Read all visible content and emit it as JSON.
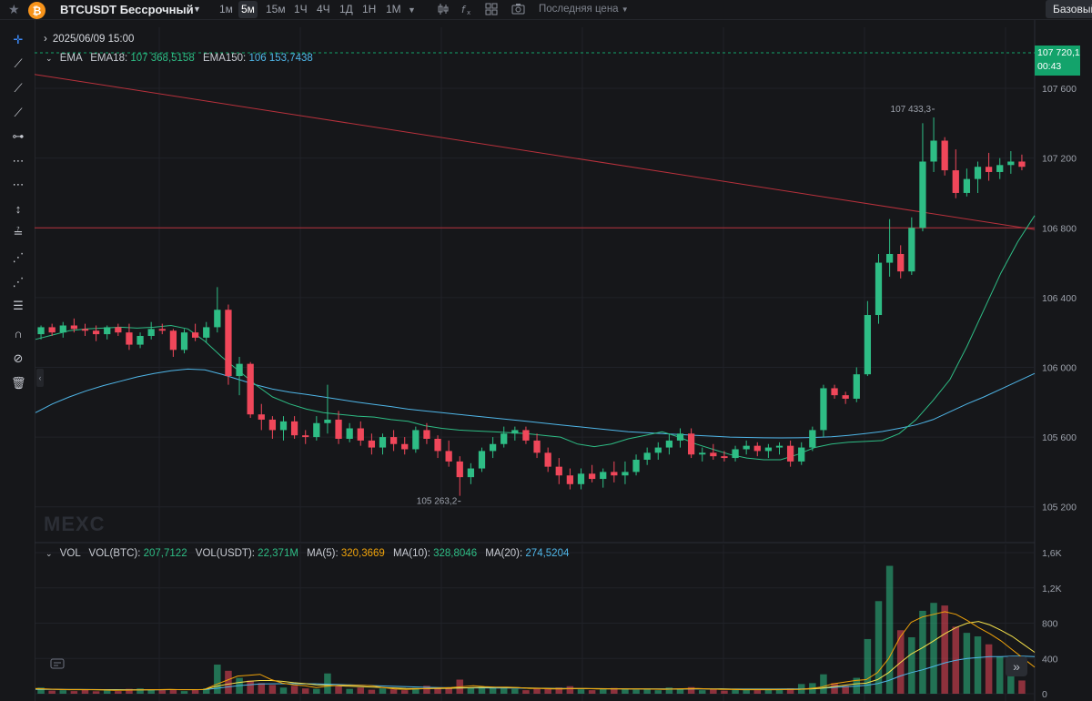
{
  "header": {
    "symbol": "BTCUSDT Бессрочный",
    "timeframes": [
      "1м",
      "5м",
      "15м",
      "1Ч",
      "4Ч",
      "1Д",
      "1Н",
      "1М"
    ],
    "active_timeframe": "5м",
    "price_type": "Последняя цена",
    "base_button": "Базовый",
    "coin_symbol": "₿"
  },
  "overlay": {
    "date": "2025/06/09 15:00",
    "ema_label": "EMA",
    "ema18_label": "EMA18:",
    "ema18_value": "107 368,5158",
    "ema150_label": "EMA150:",
    "ema150_value": "106 153,7438",
    "vol_label": "VOL",
    "vol_btc_label": "VOL(BTC):",
    "vol_btc_value": "207,7122",
    "vol_usdt_label": "VOL(USDT):",
    "vol_usdt_value": "22,371M",
    "ma5_label": "MA(5):",
    "ma5_value": "320,3669",
    "ma10_label": "MA(10):",
    "ma10_value": "328,8046",
    "ma20_label": "MA(20):",
    "ma20_value": "274,5204"
  },
  "last_price": {
    "price": "107 720,1",
    "countdown": "00:43"
  },
  "watermark": "MEXC",
  "icons": {
    "star": "star-icon",
    "coin": "bitcoin-icon",
    "dropdown": "chevron-down-icon",
    "candles": "candlestick-icon",
    "indicators": "indicator-icon",
    "layout": "layout-grid-icon",
    "camera": "camera-icon",
    "crosshair": "crosshair-icon"
  },
  "colors": {
    "up": "#2ebd85",
    "down": "#f0475a",
    "ema18": "#2ebd85",
    "ema150": "#4fb6e8",
    "ma5": "#f0a30a",
    "ma10": "#f5e14b",
    "ma20": "#4fb6e8",
    "trendline": "#b8313c"
  },
  "chart_data": [
    {
      "type": "candlestick",
      "title": "",
      "ylim": [
        105000,
        107950
      ],
      "y_ticks": [
        "107 600",
        "107 200",
        "106 800",
        "106 400",
        "106 000",
        "105 600",
        "105 200"
      ],
      "y_tick_values": [
        107600,
        107200,
        106800,
        106400,
        106000,
        105600,
        105200
      ],
      "annotations": [
        {
          "label": "107 433,3",
          "value": 107433.3,
          "kind": "high"
        },
        {
          "label": "105 263,2",
          "value": 105263.2,
          "kind": "low"
        }
      ],
      "horizontal_line": 106800,
      "trendline_from_to": [
        107680,
        106790
      ],
      "ema18": [
        106160,
        106185,
        106210,
        106220,
        106225,
        106230,
        106225,
        106230,
        106240,
        106220,
        106150,
        106060,
        105980,
        105900,
        105830,
        105790,
        105760,
        105740,
        105730,
        105720,
        105715,
        105700,
        105690,
        105665,
        105650,
        105640,
        105635,
        105630,
        105625,
        105620,
        105610,
        105600,
        105560,
        105545,
        105560,
        105590,
        105610,
        105630,
        105600,
        105560,
        105530,
        105500,
        105480,
        105470,
        105470,
        105500,
        105540,
        105560,
        105570,
        105575,
        105580,
        105620,
        105700,
        105810,
        105930,
        106120,
        106330,
        106540,
        106720,
        106870
      ],
      "ema150": [
        105740,
        105790,
        105830,
        105865,
        105895,
        105920,
        105945,
        105965,
        105980,
        105990,
        105985,
        105960,
        105930,
        105900,
        105875,
        105858,
        105845,
        105830,
        105815,
        105800,
        105787,
        105775,
        105760,
        105750,
        105740,
        105730,
        105720,
        105710,
        105700,
        105690,
        105680,
        105670,
        105660,
        105650,
        105640,
        105630,
        105625,
        105620,
        105615,
        105610,
        105605,
        105600,
        105598,
        105596,
        105595,
        105596,
        105598,
        105602,
        105610,
        105620,
        105632,
        105650,
        105670,
        105700,
        105745,
        105790,
        105830,
        105875,
        105920,
        105965
      ],
      "candles": [
        [
          106190,
          106240,
          106160,
          106230
        ],
        [
          106230,
          106250,
          106180,
          106200
        ],
        [
          106200,
          106260,
          106170,
          106240
        ],
        [
          106240,
          106280,
          106200,
          106220
        ],
        [
          106220,
          106250,
          106180,
          106210
        ],
        [
          106210,
          106240,
          106150,
          106190
        ],
        [
          106190,
          106240,
          106160,
          106230
        ],
        [
          106230,
          106250,
          106180,
          106200
        ],
        [
          106200,
          106250,
          106100,
          106130
        ],
        [
          106130,
          106200,
          106110,
          106180
        ],
        [
          106180,
          106260,
          106160,
          106220
        ],
        [
          106220,
          106250,
          106190,
          106210
        ],
        [
          106210,
          106220,
          106060,
          106100
        ],
        [
          106100,
          106220,
          106080,
          106200
        ],
        [
          106200,
          106250,
          106150,
          106170
        ],
        [
          106170,
          106260,
          106140,
          106230
        ],
        [
          106230,
          106460,
          106200,
          106330
        ],
        [
          106330,
          106360,
          105900,
          105950
        ],
        [
          105950,
          106060,
          105840,
          106020
        ],
        [
          106020,
          106030,
          105710,
          105730
        ],
        [
          105730,
          105790,
          105640,
          105700
        ],
        [
          105700,
          105720,
          105590,
          105640
        ],
        [
          105640,
          105720,
          105580,
          105690
        ],
        [
          105690,
          105720,
          105590,
          105610
        ],
        [
          105610,
          105640,
          105560,
          105600
        ],
        [
          105600,
          105720,
          105580,
          105680
        ],
        [
          105680,
          105900,
          105620,
          105700
        ],
        [
          105700,
          105750,
          105560,
          105590
        ],
        [
          105590,
          105680,
          105570,
          105650
        ],
        [
          105650,
          105690,
          105550,
          105580
        ],
        [
          105580,
          105620,
          105500,
          105540
        ],
        [
          105540,
          105620,
          105500,
          105600
        ],
        [
          105600,
          105640,
          105520,
          105560
        ],
        [
          105560,
          105600,
          105500,
          105530
        ],
        [
          105530,
          105660,
          105510,
          105640
        ],
        [
          105640,
          105680,
          105560,
          105590
        ],
        [
          105590,
          105610,
          105480,
          105520
        ],
        [
          105520,
          105580,
          105430,
          105460
        ],
        [
          105460,
          105490,
          105263,
          105370
        ],
        [
          105370,
          105450,
          105330,
          105420
        ],
        [
          105420,
          105540,
          105400,
          105520
        ],
        [
          105520,
          105600,
          105480,
          105560
        ],
        [
          105560,
          105660,
          105540,
          105620
        ],
        [
          105620,
          105660,
          105580,
          105640
        ],
        [
          105640,
          105660,
          105560,
          105580
        ],
        [
          105580,
          105620,
          105480,
          105510
        ],
        [
          105510,
          105540,
          105400,
          105430
        ],
        [
          105430,
          105480,
          105330,
          105380
        ],
        [
          105380,
          105420,
          105300,
          105330
        ],
        [
          105330,
          105420,
          105300,
          105390
        ],
        [
          105390,
          105440,
          105340,
          105360
        ],
        [
          105360,
          105420,
          105310,
          105400
        ],
        [
          105400,
          105460,
          105340,
          105380
        ],
        [
          105380,
          105460,
          105330,
          105400
        ],
        [
          105400,
          105500,
          105380,
          105470
        ],
        [
          105470,
          105540,
          105440,
          105510
        ],
        [
          105510,
          105570,
          105470,
          105540
        ],
        [
          105540,
          105620,
          105500,
          105580
        ],
        [
          105580,
          105650,
          105540,
          105620
        ],
        [
          105620,
          105650,
          105480,
          105500
        ],
        [
          105500,
          105540,
          105460,
          105510
        ],
        [
          105510,
          105560,
          105470,
          105490
        ],
        [
          105490,
          105520,
          105460,
          105480
        ],
        [
          105480,
          105550,
          105460,
          105530
        ],
        [
          105530,
          105580,
          105500,
          105550
        ],
        [
          105550,
          105570,
          105490,
          105520
        ],
        [
          105520,
          105560,
          105480,
          105540
        ],
        [
          105540,
          105570,
          105500,
          105550
        ],
        [
          105550,
          105580,
          105430,
          105460
        ],
        [
          105460,
          105570,
          105440,
          105540
        ],
        [
          105540,
          105660,
          105520,
          105640
        ],
        [
          105640,
          105900,
          105600,
          105880
        ],
        [
          105880,
          105900,
          105820,
          105840
        ],
        [
          105840,
          105860,
          105790,
          105820
        ],
        [
          105820,
          106000,
          105800,
          105960
        ],
        [
          105960,
          106380,
          105950,
          106300
        ],
        [
          106300,
          106650,
          106250,
          106600
        ],
        [
          106600,
          106850,
          106520,
          106650
        ],
        [
          106650,
          106700,
          106510,
          106550
        ],
        [
          106550,
          106860,
          106530,
          106800
        ],
        [
          106800,
          107400,
          106780,
          107180
        ],
        [
          107180,
          107433,
          107120,
          107300
        ],
        [
          107300,
          107320,
          107100,
          107130
        ],
        [
          107130,
          107250,
          106970,
          107000
        ],
        [
          107000,
          107140,
          106980,
          107080
        ],
        [
          107080,
          107180,
          107000,
          107150
        ],
        [
          107150,
          107230,
          107070,
          107120
        ],
        [
          107120,
          107200,
          107080,
          107160
        ],
        [
          107160,
          107240,
          107110,
          107180
        ],
        [
          107180,
          107220,
          107130,
          107150
        ]
      ]
    },
    {
      "type": "bar",
      "title": "",
      "ylim": [
        0,
        1600
      ],
      "y_ticks": [
        "1,6K",
        "1,2K",
        "800",
        "400",
        "0"
      ],
      "y_tick_values": [
        1600,
        1200,
        800,
        400,
        0
      ],
      "volumes": [
        70,
        35,
        40,
        30,
        45,
        28,
        40,
        30,
        55,
        60,
        45,
        40,
        50,
        30,
        45,
        60,
        330,
        260,
        180,
        150,
        120,
        100,
        70,
        90,
        60,
        55,
        230,
        85,
        55,
        70,
        45,
        60,
        50,
        40,
        65,
        90,
        70,
        60,
        160,
        65,
        80,
        70,
        60,
        55,
        40,
        60,
        55,
        70,
        85,
        50,
        40,
        55,
        65,
        60,
        45,
        50,
        40,
        70,
        55,
        75,
        40,
        50,
        35,
        45,
        50,
        40,
        45,
        50,
        60,
        110,
        120,
        220,
        120,
        90,
        180,
        620,
        1050,
        1450,
        720,
        640,
        940,
        1030,
        1000,
        760,
        690,
        650,
        560,
        420,
        240,
        150
      ],
      "ma5": [
        60,
        55,
        50,
        45,
        45,
        45,
        42,
        38,
        40,
        42,
        45,
        46,
        50,
        45,
        45,
        48,
        100,
        150,
        200,
        210,
        220,
        160,
        120,
        100,
        90,
        70,
        85,
        95,
        95,
        95,
        90,
        70,
        55,
        50,
        55,
        60,
        65,
        70,
        80,
        90,
        80,
        75,
        75,
        70,
        60,
        60,
        55,
        55,
        60,
        60,
        55,
        55,
        55,
        55,
        55,
        52,
        50,
        55,
        58,
        60,
        55,
        50,
        48,
        45,
        45,
        45,
        45,
        48,
        50,
        60,
        75,
        110,
        130,
        150,
        160,
        240,
        400,
        640,
        810,
        870,
        900,
        930,
        900,
        830,
        750,
        680,
        600,
        500,
        400,
        300
      ],
      "ma10": [
        55,
        52,
        50,
        48,
        47,
        46,
        45,
        44,
        43,
        43,
        44,
        45,
        46,
        46,
        46,
        47,
        80,
        105,
        125,
        140,
        150,
        150,
        140,
        125,
        115,
        100,
        95,
        90,
        85,
        80,
        75,
        70,
        65,
        60,
        58,
        58,
        60,
        62,
        65,
        70,
        72,
        72,
        70,
        68,
        65,
        62,
        60,
        58,
        58,
        58,
        58,
        57,
        56,
        55,
        55,
        55,
        53,
        53,
        55,
        56,
        55,
        54,
        52,
        50,
        50,
        50,
        50,
        50,
        51,
        55,
        62,
        80,
        95,
        110,
        120,
        160,
        240,
        350,
        450,
        520,
        600,
        680,
        750,
        800,
        820,
        780,
        720,
        650,
        560,
        470
      ],
      "ma20": [
        50,
        50,
        49,
        48,
        48,
        47,
        46,
        46,
        45,
        45,
        45,
        45,
        46,
        46,
        46,
        46,
        60,
        75,
        90,
        100,
        110,
        112,
        114,
        114,
        113,
        112,
        108,
        104,
        100,
        96,
        92,
        88,
        84,
        80,
        76,
        72,
        70,
        68,
        67,
        66,
        66,
        65,
        64,
        63,
        62,
        61,
        60,
        59,
        58,
        58,
        57,
        56,
        56,
        55,
        55,
        55,
        54,
        54,
        54,
        54,
        54,
        54,
        53,
        53,
        53,
        53,
        53,
        54,
        55,
        58,
        62,
        70,
        78,
        86,
        95,
        115,
        150,
        200,
        240,
        270,
        310,
        350,
        380,
        400,
        410,
        420,
        420,
        425,
        425,
        420
      ]
    }
  ]
}
